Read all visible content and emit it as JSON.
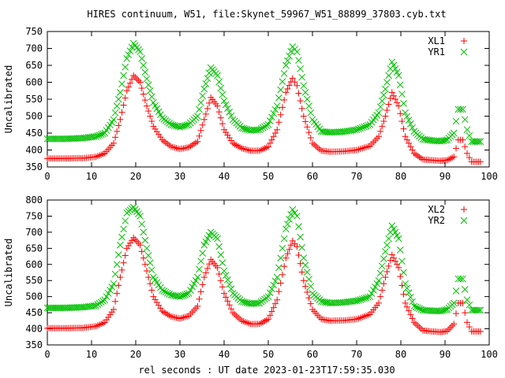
{
  "chart_data": [
    {
      "type": "scatter",
      "title": "HIRES continuum, W51, file:Skynet_59967_W51_88899_37803.cyb.txt",
      "xlabel": "",
      "ylabel": "Uncalibrated",
      "xlim": [
        0,
        100
      ],
      "ylim": [
        350,
        750
      ],
      "xticks": [
        0,
        10,
        20,
        30,
        40,
        50,
        60,
        70,
        80,
        90,
        100
      ],
      "yticks": [
        350,
        400,
        450,
        500,
        550,
        600,
        650,
        700,
        750
      ],
      "grid": false,
      "legend_position": "top-right",
      "series": [
        {
          "name": "XL1",
          "color": "#ff0000",
          "marker": "plus",
          "x": [
            0,
            4,
            8,
            11,
            13,
            15,
            16.5,
            18,
            19.5,
            21,
            22.5,
            24,
            26,
            28,
            30,
            32,
            34,
            35.5,
            37,
            38.5,
            40,
            42,
            44,
            46,
            48,
            50,
            52,
            54,
            55.5,
            56.5,
            58,
            60,
            62,
            64,
            67,
            70,
            73,
            75,
            76.5,
            78,
            79.5,
            81,
            83,
            85,
            87,
            89,
            90.5,
            92,
            93,
            94,
            95,
            96,
            98
          ],
          "y": [
            375,
            375,
            376,
            380,
            390,
            420,
            490,
            575,
            620,
            600,
            530,
            470,
            430,
            410,
            403,
            408,
            425,
            490,
            555,
            530,
            460,
            420,
            405,
            398,
            398,
            410,
            460,
            570,
            612,
            590,
            500,
            420,
            398,
            395,
            396,
            400,
            412,
            440,
            500,
            570,
            530,
            440,
            390,
            372,
            370,
            368,
            370,
            380,
            430,
            430,
            390,
            365,
            365
          ]
        },
        {
          "name": "YR1",
          "color": "#00c000",
          "marker": "x",
          "x": [
            0,
            4,
            8,
            11,
            13,
            15,
            16.5,
            18,
            19.5,
            21,
            22.5,
            24,
            26,
            28,
            30,
            32,
            34,
            35.5,
            37,
            38.5,
            40,
            42,
            44,
            46,
            48,
            50,
            52,
            54,
            55.5,
            56.5,
            58,
            60,
            62,
            64,
            67,
            70,
            73,
            75,
            76.5,
            78,
            79.5,
            81,
            83,
            85,
            87,
            89,
            90.5,
            92,
            93,
            94,
            95,
            96,
            98
          ],
          "y": [
            433,
            433,
            435,
            440,
            450,
            490,
            570,
            670,
            715,
            690,
            610,
            540,
            495,
            475,
            468,
            475,
            500,
            580,
            643,
            620,
            545,
            490,
            465,
            458,
            460,
            475,
            530,
            650,
            705,
            690,
            590,
            490,
            455,
            452,
            454,
            460,
            475,
            510,
            580,
            660,
            620,
            510,
            455,
            432,
            428,
            426,
            430,
            450,
            520,
            520,
            460,
            425,
            425
          ]
        }
      ]
    },
    {
      "type": "scatter",
      "title": "",
      "xlabel": "rel seconds : UT date 2023-01-23T17:59:35.030",
      "ylabel": "Uncalibrated",
      "xlim": [
        0,
        100
      ],
      "ylim": [
        350,
        800
      ],
      "xticks": [
        0,
        10,
        20,
        30,
        40,
        50,
        60,
        70,
        80,
        90,
        100
      ],
      "yticks": [
        350,
        400,
        450,
        500,
        550,
        600,
        650,
        700,
        750,
        800
      ],
      "grid": false,
      "legend_position": "top-right",
      "series": [
        {
          "name": "XL2",
          "color": "#ff0000",
          "marker": "plus",
          "x": [
            0,
            4,
            8,
            11,
            13,
            15,
            16.5,
            18,
            19.5,
            21,
            22.5,
            24,
            26,
            28,
            30,
            32,
            34,
            35.5,
            37,
            38.5,
            40,
            42,
            44,
            46,
            48,
            50,
            52,
            54,
            55.5,
            56.5,
            58,
            60,
            62,
            64,
            67,
            70,
            73,
            75,
            76.5,
            78,
            79.5,
            81,
            83,
            85,
            87,
            89,
            90.5,
            92,
            93,
            94,
            95,
            96,
            98
          ],
          "y": [
            402,
            402,
            403,
            408,
            420,
            460,
            560,
            650,
            683,
            660,
            580,
            500,
            455,
            438,
            432,
            440,
            470,
            560,
            615,
            590,
            510,
            450,
            425,
            415,
            415,
            430,
            490,
            620,
            673,
            655,
            550,
            460,
            430,
            425,
            426,
            430,
            445,
            480,
            560,
            630,
            590,
            480,
            420,
            395,
            392,
            390,
            393,
            415,
            480,
            480,
            420,
            392,
            392
          ]
        },
        {
          "name": "YR2",
          "color": "#00c000",
          "marker": "x",
          "x": [
            0,
            4,
            8,
            11,
            13,
            15,
            16.5,
            18,
            19.5,
            21,
            22.5,
            24,
            26,
            28,
            30,
            32,
            34,
            35.5,
            37,
            38.5,
            40,
            42,
            44,
            46,
            48,
            50,
            52,
            54,
            55.5,
            56.5,
            58,
            60,
            62,
            64,
            67,
            70,
            73,
            75,
            76.5,
            78,
            79.5,
            81,
            83,
            85,
            87,
            89,
            90.5,
            92,
            93,
            94,
            95,
            96,
            98
          ],
          "y": [
            465,
            465,
            467,
            472,
            490,
            540,
            660,
            760,
            778,
            750,
            650,
            560,
            520,
            505,
            500,
            510,
            560,
            660,
            700,
            680,
            580,
            510,
            485,
            478,
            480,
            500,
            560,
            710,
            770,
            750,
            620,
            510,
            485,
            480,
            482,
            487,
            500,
            550,
            640,
            720,
            680,
            540,
            470,
            458,
            456,
            455,
            460,
            480,
            555,
            555,
            490,
            458,
            458
          ]
        }
      ]
    }
  ]
}
